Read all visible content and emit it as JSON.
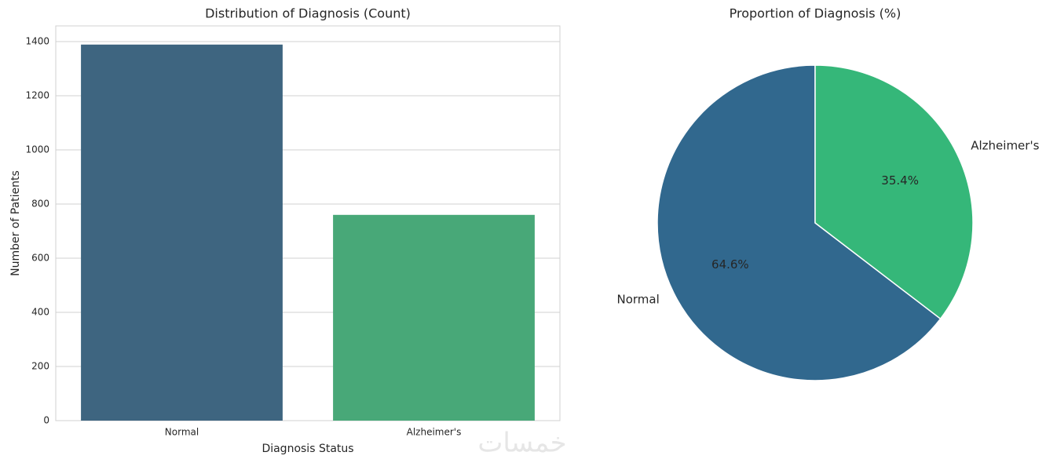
{
  "chart_data": [
    {
      "type": "bar",
      "title": "Distribution of Diagnosis (Count)",
      "x_label": "Diagnosis Status",
      "y_label": "Number of Patients",
      "categories": [
        "Normal",
        "Alzheimer's"
      ],
      "values": [
        1389,
        760
      ],
      "colors": [
        "#3e6580",
        "#48a878"
      ],
      "ylim": [
        0,
        1458
      ],
      "yticks": [
        0,
        200,
        400,
        600,
        800,
        1000,
        1200,
        1400
      ],
      "grid": true
    },
    {
      "type": "pie",
      "title": "Proportion of Diagnosis (%)",
      "categories": [
        "Normal",
        "Alzheimer's"
      ],
      "values": [
        64.6,
        35.4
      ],
      "value_labels": [
        "64.6%",
        "35.4%"
      ],
      "colors": [
        "#31688e",
        "#35b779"
      ],
      "start_angle": 90
    }
  ],
  "watermark": "خمسات"
}
